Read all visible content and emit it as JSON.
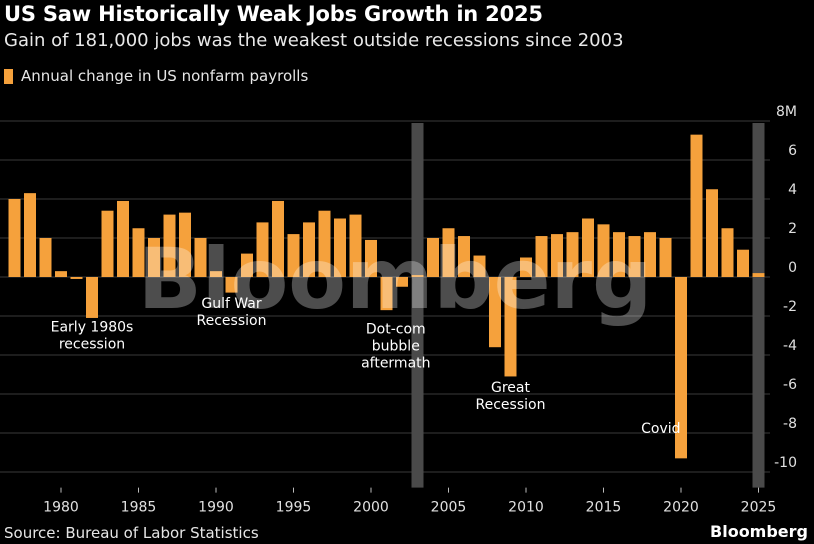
{
  "header": {
    "title": "US Saw Historically Weak Jobs Growth in 2025",
    "subtitle": "Gain of 181,000 jobs was the weakest outside recessions since 2003"
  },
  "footer": {
    "source": "Source: Bureau of Labor Statistics",
    "brand": "Bloomberg"
  },
  "watermark": "Bloomberg",
  "colors": {
    "bar": "#f5a13c",
    "background": "#000000",
    "shade": "#4a4a4a"
  },
  "chart_data": {
    "type": "bar",
    "legend": {
      "label": "Annual change in US nonfarm payrolls",
      "position": "top-left"
    },
    "x": [
      1977,
      1978,
      1979,
      1980,
      1981,
      1982,
      1983,
      1984,
      1985,
      1986,
      1987,
      1988,
      1989,
      1990,
      1991,
      1992,
      1993,
      1994,
      1995,
      1996,
      1997,
      1998,
      1999,
      2000,
      2001,
      2002,
      2003,
      2004,
      2005,
      2006,
      2007,
      2008,
      2009,
      2010,
      2011,
      2012,
      2013,
      2014,
      2015,
      2016,
      2017,
      2018,
      2019,
      2020,
      2021,
      2022,
      2023,
      2024,
      2025
    ],
    "values": [
      4.0,
      4.3,
      2.0,
      0.3,
      -0.1,
      -2.1,
      3.4,
      3.9,
      2.5,
      2.0,
      3.2,
      3.3,
      2.0,
      0.3,
      -0.8,
      1.2,
      2.8,
      3.9,
      2.2,
      2.8,
      3.4,
      3.0,
      3.2,
      1.9,
      -1.7,
      -0.5,
      0.1,
      2.0,
      2.5,
      2.1,
      1.1,
      -3.6,
      -5.1,
      1.0,
      2.1,
      2.2,
      2.3,
      3.0,
      2.7,
      2.3,
      2.1,
      2.3,
      2.0,
      -9.3,
      7.3,
      4.5,
      2.5,
      1.4,
      0.2
    ],
    "ylim": [
      -10.8,
      8
    ],
    "yticks": [
      8,
      6,
      4,
      2,
      0,
      -2,
      -4,
      -6,
      -8,
      -10
    ],
    "ytick_labels": [
      "8M",
      "6",
      "4",
      "2",
      "0",
      "-2",
      "-4",
      "-6",
      "-8",
      "-10"
    ],
    "xticks": [
      1980,
      1985,
      1990,
      1995,
      2000,
      2005,
      2010,
      2015,
      2020,
      2025
    ],
    "xtick_labels": [
      "1980",
      "1985",
      "1990",
      "1995",
      "2000",
      "2005",
      "2010",
      "2015",
      "2020",
      "2025"
    ],
    "grid": true,
    "shaded_years": [
      2003,
      2025
    ],
    "annotations": [
      {
        "lines": [
          "Early 1980s",
          "recession"
        ],
        "x": 1982,
        "y": -2.8
      },
      {
        "lines": [
          "Gulf War",
          "Recession"
        ],
        "x": 1991,
        "y": -1.6
      },
      {
        "lines": [
          "Dot-com",
          "bubble",
          "aftermath"
        ],
        "x": 2001.6,
        "y": -2.9
      },
      {
        "lines": [
          "Great",
          "Recession"
        ],
        "x": 2009,
        "y": -5.9
      },
      {
        "lines": [
          "Covid"
        ],
        "x": 2018.7,
        "y": -8.0
      }
    ]
  }
}
